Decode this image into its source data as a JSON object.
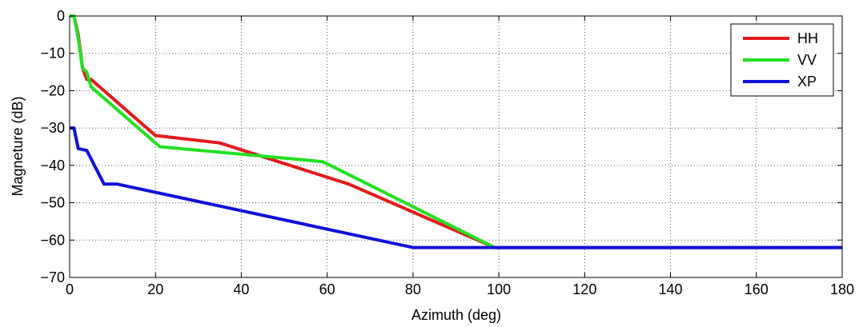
{
  "chart_data": {
    "type": "line",
    "title": "",
    "xlabel": "Azimuth (deg)",
    "ylabel": "Magneture (dB)",
    "xlim": [
      0,
      180
    ],
    "ylim": [
      -70,
      0
    ],
    "x_ticks": [
      0,
      20,
      40,
      60,
      80,
      100,
      120,
      140,
      160,
      180
    ],
    "y_ticks": [
      0,
      -10,
      -20,
      -30,
      -40,
      -50,
      -60,
      -70
    ],
    "x_tick_labels": [
      "0",
      "20",
      "40",
      "60",
      "80",
      "100",
      "120",
      "140",
      "160",
      "180"
    ],
    "y_tick_labels": [
      "0",
      "−10",
      "−20",
      "−30",
      "−40",
      "−50",
      "−60",
      "−70"
    ],
    "grid": true,
    "legend_position": "top-right",
    "series": [
      {
        "name": "HH",
        "color": "#e31a1c",
        "points": [
          [
            0,
            0
          ],
          [
            1,
            0
          ],
          [
            2,
            -5
          ],
          [
            3,
            -14
          ],
          [
            4,
            -17
          ],
          [
            5,
            -17
          ],
          [
            20,
            -32
          ],
          [
            35,
            -34
          ],
          [
            65,
            -45
          ],
          [
            99,
            -62
          ],
          [
            180,
            -62
          ]
        ]
      },
      {
        "name": "VV",
        "color": "#22e022",
        "points": [
          [
            0,
            0
          ],
          [
            1,
            0
          ],
          [
            2,
            -6
          ],
          [
            3,
            -14
          ],
          [
            4,
            -15
          ],
          [
            5,
            -19
          ],
          [
            21,
            -35
          ],
          [
            59,
            -39
          ],
          [
            99,
            -62
          ],
          [
            180,
            -62
          ]
        ]
      },
      {
        "name": "XP",
        "color": "#1010d8",
        "points": [
          [
            0,
            -30
          ],
          [
            1,
            -30
          ],
          [
            2,
            -35.5
          ],
          [
            4,
            -36
          ],
          [
            8,
            -45
          ],
          [
            11,
            -45
          ],
          [
            80,
            -62
          ],
          [
            180,
            -62
          ]
        ]
      }
    ]
  }
}
